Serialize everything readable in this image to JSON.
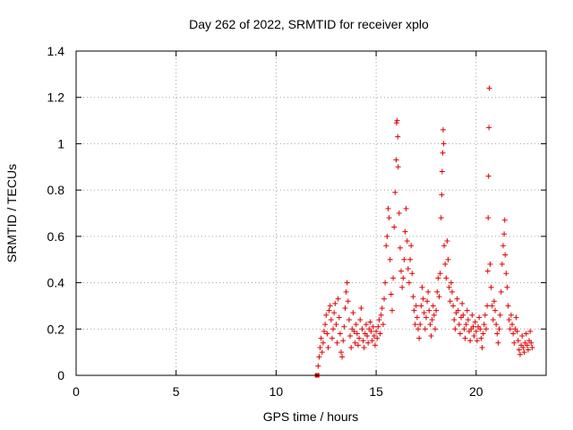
{
  "chart_data": {
    "type": "scatter",
    "title": "Day 262 of 2022, SRMTID for receiver xplo",
    "xlabel": "GPS time / hours",
    "ylabel": "SRMTID / TECUs",
    "xlim": [
      0,
      23.5
    ],
    "ylim": [
      0,
      1.4
    ],
    "xticks": [
      0,
      5,
      10,
      15,
      20
    ],
    "yticks": [
      0,
      0.2,
      0.4,
      0.6,
      0.8,
      1,
      1.2,
      1.4
    ],
    "xtick_labels": [
      "0",
      "5",
      "10",
      "15",
      "20"
    ],
    "ytick_labels": [
      "0",
      "0.2",
      "0.4",
      "0.6",
      "0.8",
      "1",
      "1.2",
      "1.4"
    ],
    "grid": true,
    "marker": "+",
    "color": "#e00000",
    "series": [
      {
        "name": "SRMTID",
        "points": [
          [
            12.05,
            0.0
          ],
          [
            12.1,
            0.04
          ],
          [
            12.15,
            0.08
          ],
          [
            12.2,
            0.12
          ],
          [
            12.25,
            0.16
          ],
          [
            12.3,
            0.1
          ],
          [
            12.35,
            0.14
          ],
          [
            12.4,
            0.19
          ],
          [
            12.45,
            0.22
          ],
          [
            12.5,
            0.26
          ],
          [
            12.55,
            0.18
          ],
          [
            12.6,
            0.12
          ],
          [
            12.65,
            0.28
          ],
          [
            12.7,
            0.3
          ],
          [
            12.75,
            0.24
          ],
          [
            12.8,
            0.16
          ],
          [
            12.85,
            0.2
          ],
          [
            12.9,
            0.27
          ],
          [
            12.95,
            0.31
          ],
          [
            13.0,
            0.22
          ],
          [
            13.05,
            0.14
          ],
          [
            13.1,
            0.33
          ],
          [
            13.15,
            0.25
          ],
          [
            13.2,
            0.18
          ],
          [
            13.25,
            0.1
          ],
          [
            13.3,
            0.08
          ],
          [
            13.35,
            0.15
          ],
          [
            13.4,
            0.21
          ],
          [
            13.45,
            0.29
          ],
          [
            13.5,
            0.36
          ],
          [
            13.55,
            0.4
          ],
          [
            13.6,
            0.32
          ],
          [
            13.65,
            0.24
          ],
          [
            13.7,
            0.17
          ],
          [
            13.75,
            0.12
          ],
          [
            13.8,
            0.2
          ],
          [
            13.85,
            0.27
          ],
          [
            13.9,
            0.19
          ],
          [
            13.95,
            0.14
          ],
          [
            14.0,
            0.22
          ],
          [
            14.05,
            0.18
          ],
          [
            14.1,
            0.13
          ],
          [
            14.15,
            0.16
          ],
          [
            14.2,
            0.24
          ],
          [
            14.25,
            0.29
          ],
          [
            14.3,
            0.2
          ],
          [
            14.35,
            0.15
          ],
          [
            14.4,
            0.12
          ],
          [
            14.45,
            0.18
          ],
          [
            14.5,
            0.22
          ],
          [
            14.55,
            0.17
          ],
          [
            14.6,
            0.14
          ],
          [
            14.65,
            0.2
          ],
          [
            14.7,
            0.23
          ],
          [
            14.75,
            0.19
          ],
          [
            14.8,
            0.15
          ],
          [
            14.85,
            0.21
          ],
          [
            14.9,
            0.17
          ],
          [
            14.95,
            0.13
          ],
          [
            15.0,
            0.19
          ],
          [
            15.05,
            0.16
          ],
          [
            15.1,
            0.21
          ],
          [
            15.15,
            0.24
          ],
          [
            15.2,
            0.18
          ],
          [
            15.25,
            0.26
          ],
          [
            15.3,
            0.29
          ],
          [
            15.35,
            0.22
          ],
          [
            15.4,
            0.33
          ],
          [
            15.45,
            0.4
          ],
          [
            15.5,
            0.56
          ],
          [
            15.55,
            0.6
          ],
          [
            15.6,
            0.72
          ],
          [
            15.65,
            0.68
          ],
          [
            15.7,
            0.5
          ],
          [
            15.75,
            0.35
          ],
          [
            15.8,
            0.28
          ],
          [
            15.85,
            0.42
          ],
          [
            15.9,
            0.64
          ],
          [
            15.95,
            0.79
          ],
          [
            16.0,
            0.93
          ],
          [
            16.02,
            1.09
          ],
          [
            16.05,
            1.1
          ],
          [
            16.08,
            1.03
          ],
          [
            16.1,
            0.9
          ],
          [
            16.15,
            0.7
          ],
          [
            16.2,
            0.55
          ],
          [
            16.25,
            0.45
          ],
          [
            16.3,
            0.38
          ],
          [
            16.35,
            0.42
          ],
          [
            16.4,
            0.5
          ],
          [
            16.45,
            0.62
          ],
          [
            16.5,
            0.72
          ],
          [
            16.55,
            0.58
          ],
          [
            16.6,
            0.46
          ],
          [
            16.65,
            0.4
          ],
          [
            16.7,
            0.5
          ],
          [
            16.75,
            0.56
          ],
          [
            16.8,
            0.44
          ],
          [
            16.85,
            0.34
          ],
          [
            16.9,
            0.28
          ],
          [
            16.95,
            0.22
          ],
          [
            17.0,
            0.3
          ],
          [
            17.05,
            0.25
          ],
          [
            17.1,
            0.2
          ],
          [
            17.15,
            0.16
          ],
          [
            17.2,
            0.22
          ],
          [
            17.25,
            0.3
          ],
          [
            17.3,
            0.38
          ],
          [
            17.35,
            0.33
          ],
          [
            17.4,
            0.27
          ],
          [
            17.45,
            0.2
          ],
          [
            17.5,
            0.25
          ],
          [
            17.55,
            0.32
          ],
          [
            17.6,
            0.36
          ],
          [
            17.65,
            0.28
          ],
          [
            17.7,
            0.22
          ],
          [
            17.75,
            0.17
          ],
          [
            17.8,
            0.24
          ],
          [
            17.85,
            0.3
          ],
          [
            17.9,
            0.26
          ],
          [
            17.95,
            0.2
          ],
          [
            18.0,
            0.28
          ],
          [
            18.05,
            0.36
          ],
          [
            18.1,
            0.42
          ],
          [
            18.15,
            0.34
          ],
          [
            18.2,
            0.44
          ],
          [
            18.25,
            0.68
          ],
          [
            18.28,
            0.78
          ],
          [
            18.3,
            0.88
          ],
          [
            18.33,
            0.96
          ],
          [
            18.35,
            1.06
          ],
          [
            18.38,
            1.0
          ],
          [
            18.4,
            0.56
          ],
          [
            18.45,
            0.48
          ],
          [
            18.5,
            0.42
          ],
          [
            18.55,
            0.58
          ],
          [
            18.6,
            0.5
          ],
          [
            18.65,
            0.38
          ],
          [
            18.7,
            0.32
          ],
          [
            18.75,
            0.4
          ],
          [
            18.8,
            0.36
          ],
          [
            18.85,
            0.3
          ],
          [
            18.9,
            0.24
          ],
          [
            18.95,
            0.2
          ],
          [
            19.0,
            0.27
          ],
          [
            19.05,
            0.33
          ],
          [
            19.1,
            0.28
          ],
          [
            19.15,
            0.22
          ],
          [
            19.2,
            0.18
          ],
          [
            19.25,
            0.25
          ],
          [
            19.3,
            0.31
          ],
          [
            19.35,
            0.26
          ],
          [
            19.4,
            0.2
          ],
          [
            19.45,
            0.16
          ],
          [
            19.5,
            0.22
          ],
          [
            19.55,
            0.28
          ],
          [
            19.6,
            0.24
          ],
          [
            19.65,
            0.19
          ],
          [
            19.7,
            0.15
          ],
          [
            19.75,
            0.2
          ],
          [
            19.8,
            0.26
          ],
          [
            19.85,
            0.21
          ],
          [
            19.9,
            0.17
          ],
          [
            19.95,
            0.23
          ],
          [
            20.0,
            0.19
          ],
          [
            20.05,
            0.15
          ],
          [
            20.1,
            0.21
          ],
          [
            20.15,
            0.25
          ],
          [
            20.2,
            0.2
          ],
          [
            20.25,
            0.16
          ],
          [
            20.3,
            0.12
          ],
          [
            20.35,
            0.18
          ],
          [
            20.4,
            0.22
          ],
          [
            20.45,
            0.26
          ],
          [
            20.5,
            0.2
          ],
          [
            20.55,
            0.3
          ],
          [
            20.58,
            0.45
          ],
          [
            20.6,
            0.68
          ],
          [
            20.62,
            0.86
          ],
          [
            20.64,
            1.07
          ],
          [
            20.66,
            1.24
          ],
          [
            20.7,
            0.48
          ],
          [
            20.75,
            0.38
          ],
          [
            20.8,
            0.3
          ],
          [
            20.85,
            0.24
          ],
          [
            20.9,
            0.32
          ],
          [
            20.95,
            0.28
          ],
          [
            21.0,
            0.22
          ],
          [
            21.05,
            0.18
          ],
          [
            21.1,
            0.14
          ],
          [
            21.15,
            0.2
          ],
          [
            21.2,
            0.26
          ],
          [
            21.25,
            0.36
          ],
          [
            21.3,
            0.48
          ],
          [
            21.35,
            0.56
          ],
          [
            21.4,
            0.61
          ],
          [
            21.43,
            0.67
          ],
          [
            21.45,
            0.52
          ],
          [
            21.5,
            0.44
          ],
          [
            21.55,
            0.38
          ],
          [
            21.6,
            0.3
          ],
          [
            21.65,
            0.24
          ],
          [
            21.7,
            0.2
          ],
          [
            21.75,
            0.26
          ],
          [
            21.8,
            0.22
          ],
          [
            21.85,
            0.18
          ],
          [
            21.9,
            0.14
          ],
          [
            21.95,
            0.2
          ],
          [
            22.0,
            0.25
          ],
          [
            22.05,
            0.19
          ],
          [
            22.1,
            0.15
          ],
          [
            22.15,
            0.11
          ],
          [
            22.2,
            0.09
          ],
          [
            22.25,
            0.13
          ],
          [
            22.3,
            0.17
          ],
          [
            22.35,
            0.12
          ],
          [
            22.4,
            0.1
          ],
          [
            22.45,
            0.14
          ],
          [
            22.5,
            0.18
          ],
          [
            22.55,
            0.13
          ],
          [
            22.6,
            0.11
          ],
          [
            22.65,
            0.15
          ],
          [
            22.7,
            0.19
          ],
          [
            22.75,
            0.14
          ],
          [
            22.8,
            0.12
          ]
        ]
      }
    ]
  }
}
